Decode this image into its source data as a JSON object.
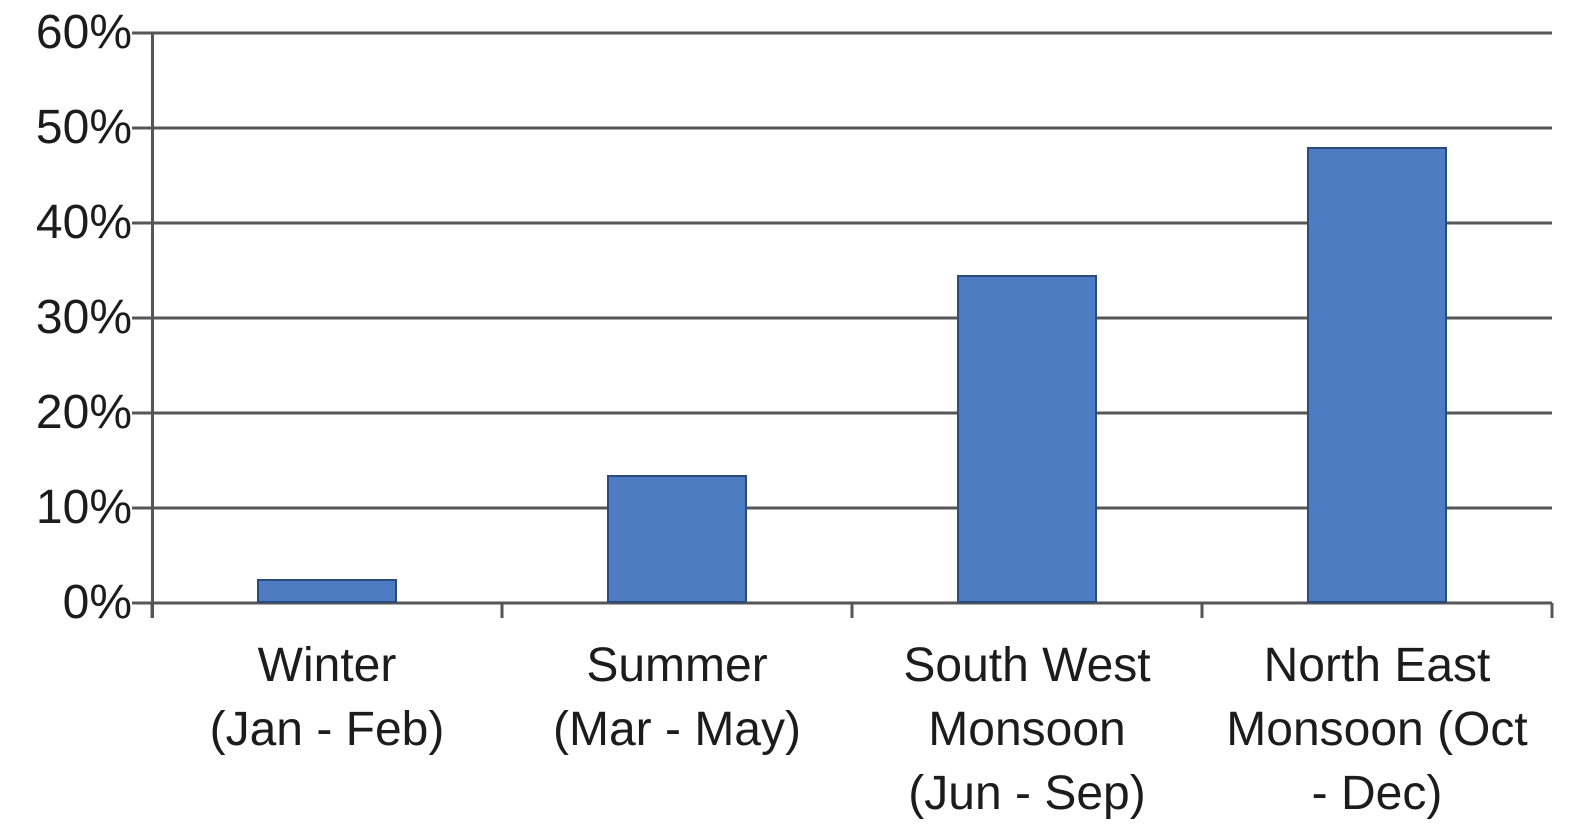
{
  "chart_data": {
    "type": "bar",
    "title": "",
    "xlabel": "",
    "ylabel": "",
    "categories": [
      "Winter (Jan - Feb)",
      "Summer (Mar - May)",
      "South West Monsoon (Jun - Sep)",
      "North East Monsoon (Oct - Dec)"
    ],
    "category_lines": [
      [
        "Winter",
        "(Jan - Feb)"
      ],
      [
        "Summer",
        "(Mar - May)"
      ],
      [
        "South West",
        "Monsoon",
        "(Jun - Sep)"
      ],
      [
        "North East",
        "Monsoon (Oct",
        "- Dec)"
      ]
    ],
    "values": [
      2.5,
      13.5,
      34.5,
      48
    ],
    "unit": "%",
    "ylim": [
      0,
      60
    ],
    "ytick_values": [
      60,
      50,
      40,
      30,
      20,
      10,
      0
    ],
    "yticks": [
      "60%",
      "50%",
      "40%",
      "30%",
      "20%",
      "10%",
      "0%"
    ],
    "grid": "horizontal",
    "legend": "none",
    "colors": {
      "bar_fill": "#4D7CC3",
      "bar_border": "#2A4B7C",
      "gridline": "#565658",
      "axis": "#565658",
      "text": "#1C1C1C",
      "background": "#FFFFFF"
    }
  }
}
